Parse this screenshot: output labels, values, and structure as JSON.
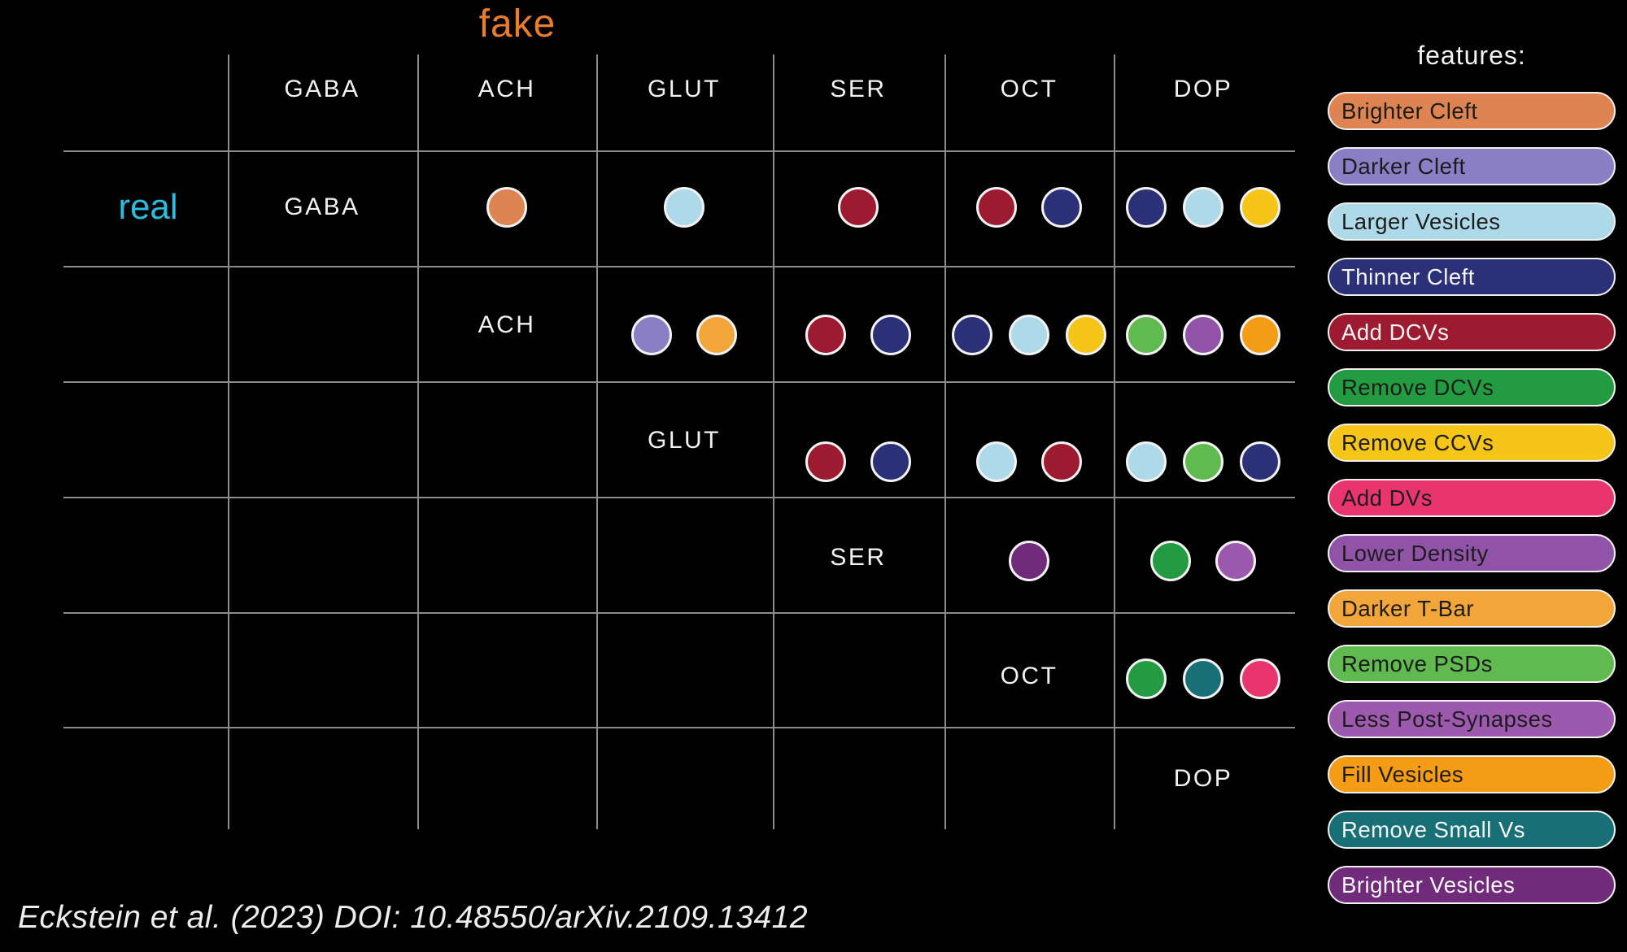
{
  "titles": {
    "fake": "fake",
    "fake_color": "#E87E2B",
    "real": "real",
    "real_color": "#2EBCDC"
  },
  "citation": "Eckstein et al. (2023) DOI: 10.48550/arXiv.2109.13412",
  "legend": {
    "title": "features:",
    "items": [
      {
        "label": "Brighter Cleft",
        "color": "#DD8452",
        "text_color": "#1c1c1c"
      },
      {
        "label": "Darker Cleft",
        "color": "#8A7EC4",
        "text_color": "#1c1c1c"
      },
      {
        "label": "Larger Vesicles",
        "color": "#ADD9E8",
        "text_color": "#1c1c1c"
      },
      {
        "label": "Thinner Cleft",
        "color": "#2B3077",
        "text_color": "#f5f5f5"
      },
      {
        "label": "Add DCVs",
        "color": "#9C1B31",
        "text_color": "#f5f5f5"
      },
      {
        "label": "Remove DCVs",
        "color": "#239B41",
        "text_color": "#1c1c1c"
      },
      {
        "label": "Remove CCVs",
        "color": "#F5C517",
        "text_color": "#1c1c1c"
      },
      {
        "label": "Add DVs",
        "color": "#E8356F",
        "text_color": "#1c1c1c"
      },
      {
        "label": "Lower Density",
        "color": "#9153A8",
        "text_color": "#1c1c1c"
      },
      {
        "label": "Darker T-Bar",
        "color": "#F2A538",
        "text_color": "#1c1c1c"
      },
      {
        "label": "Remove PSDs",
        "color": "#60BA4F",
        "text_color": "#1c1c1c"
      },
      {
        "label": "Less Post-Synapses",
        "color": "#9D59AD",
        "text_color": "#1c1c1c"
      },
      {
        "label": "Fill Vesicles",
        "color": "#F49C15",
        "text_color": "#1c1c1c"
      },
      {
        "label": "Remove Small Vs",
        "color": "#186F75",
        "text_color": "#f5f5f5"
      },
      {
        "label": "Brighter Vesicles",
        "color": "#702C7B",
        "text_color": "#f5f5f5"
      }
    ]
  },
  "chart_data": {
    "type": "matrix",
    "row_axis_label": "real",
    "col_axis_label": "fake",
    "classes": [
      "GABA",
      "ACH",
      "GLUT",
      "SER",
      "OCT",
      "DOP"
    ],
    "legend_position": "right",
    "cells": [
      {
        "real": "GABA",
        "fake": "ACH",
        "features": [
          "Brighter Cleft"
        ]
      },
      {
        "real": "GABA",
        "fake": "GLUT",
        "features": [
          "Larger Vesicles"
        ]
      },
      {
        "real": "GABA",
        "fake": "SER",
        "features": [
          "Add DCVs"
        ]
      },
      {
        "real": "GABA",
        "fake": "OCT",
        "features": [
          "Add DCVs",
          "Thinner Cleft"
        ]
      },
      {
        "real": "GABA",
        "fake": "DOP",
        "features": [
          "Thinner Cleft",
          "Larger Vesicles",
          "Remove CCVs"
        ]
      },
      {
        "real": "ACH",
        "fake": "GLUT",
        "features": [
          "Darker Cleft",
          "Darker T-Bar"
        ]
      },
      {
        "real": "ACH",
        "fake": "SER",
        "features": [
          "Add DCVs",
          "Thinner Cleft"
        ]
      },
      {
        "real": "ACH",
        "fake": "OCT",
        "features": [
          "Thinner Cleft",
          "Larger Vesicles",
          "Remove CCVs"
        ]
      },
      {
        "real": "ACH",
        "fake": "DOP",
        "features": [
          "Remove PSDs",
          "Lower Density",
          "Fill Vesicles"
        ]
      },
      {
        "real": "GLUT",
        "fake": "SER",
        "features": [
          "Add DCVs",
          "Thinner Cleft"
        ]
      },
      {
        "real": "GLUT",
        "fake": "OCT",
        "features": [
          "Larger Vesicles",
          "Add DCVs"
        ]
      },
      {
        "real": "GLUT",
        "fake": "DOP",
        "features": [
          "Larger Vesicles",
          "Remove PSDs",
          "Thinner Cleft"
        ]
      },
      {
        "real": "SER",
        "fake": "OCT",
        "features": [
          "Brighter Vesicles"
        ]
      },
      {
        "real": "SER",
        "fake": "DOP",
        "features": [
          "Remove DCVs",
          "Less Post-Synapses"
        ]
      },
      {
        "real": "OCT",
        "fake": "DOP",
        "features": [
          "Remove DCVs",
          "Remove Small Vs",
          "Add DVs"
        ]
      }
    ]
  }
}
